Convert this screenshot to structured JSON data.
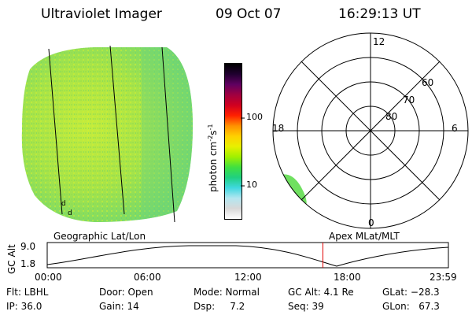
{
  "header": {
    "instrument": "Ultraviolet Imager",
    "date": "09 Oct 07",
    "time": "16:29:13 UT"
  },
  "colorbar": {
    "unit_label": "photon cm",
    "unit_exp1": "-2",
    "unit_s": "s",
    "unit_exp2": "-1",
    "tick_100": "100",
    "tick_10": "10",
    "stops": [
      "#ffffff",
      "#d8d8d8",
      "#b4e6f0",
      "#40d8e0",
      "#20d080",
      "#40e040",
      "#a0f000",
      "#e8f000",
      "#ffd000",
      "#ff9000",
      "#ff2000",
      "#d00020",
      "#a00040",
      "#600060",
      "#200030",
      "#000000"
    ]
  },
  "image_panel": {
    "corner_marks": [
      "d",
      "d"
    ]
  },
  "polar_plot": {
    "mlt_labels": {
      "top": "12",
      "right": "6",
      "bottom": "0",
      "left": "18"
    },
    "lat_labels": [
      "60",
      "70",
      "80"
    ]
  },
  "alt_plot": {
    "left_label": "Geographic Lat/Lon",
    "right_label": "Apex MLat/MLT",
    "y_axis_label": "GC Alt",
    "y_ticks": [
      "9.0",
      "1.8"
    ],
    "x_ticks": [
      "00:00",
      "06:00",
      "12:00",
      "18:00",
      "23:59"
    ],
    "current_time_hours": 16.49,
    "marker_color": "#e00000"
  },
  "info": {
    "filter": "Flt: LBHL",
    "door": "Door: Open",
    "mode": "Mode: Normal",
    "gc_alt": "GC Alt: 4.1 Re",
    "glat": "GLat: −28.3",
    "ip": "IP: 36.0",
    "gain": "Gain: 14",
    "dsp": "Dsp:     7.2",
    "seq": "Seq: 39",
    "glon": "GLon:   67.3"
  }
}
